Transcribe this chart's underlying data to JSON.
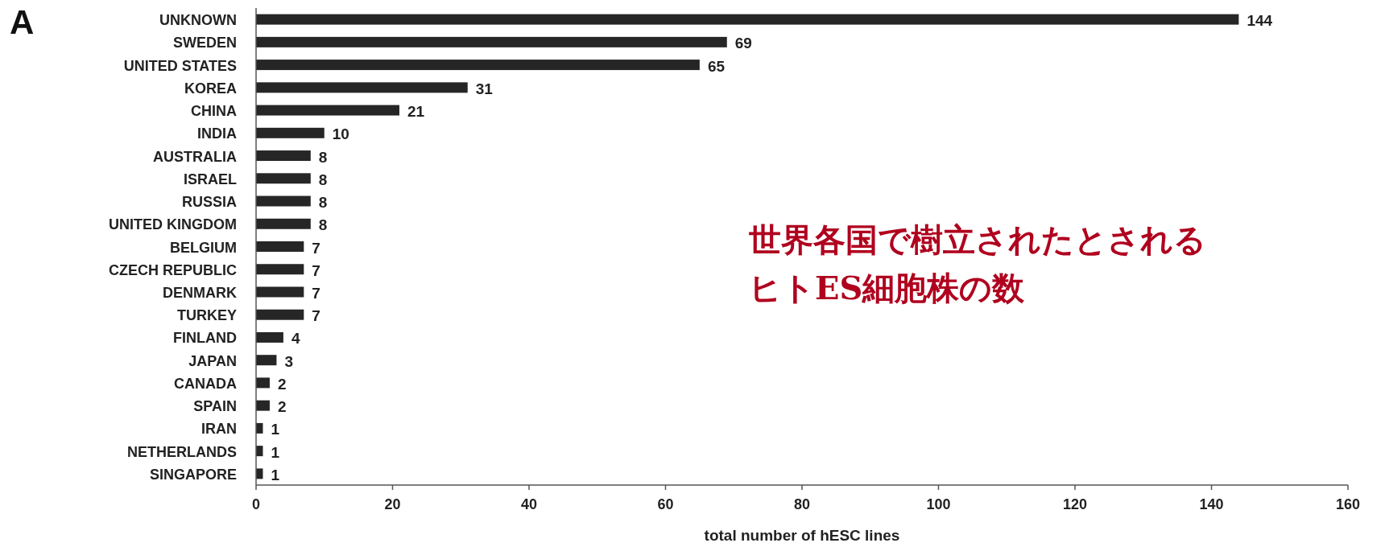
{
  "chart_data": {
    "type": "bar",
    "orientation": "horizontal",
    "xlabel": "total number of hESC lines",
    "categories": [
      "UNKNOWN",
      "SWEDEN",
      "UNITED STATES",
      "KOREA",
      "CHINA",
      "INDIA",
      "AUSTRALIA",
      "ISRAEL",
      "RUSSIA",
      "UNITED KINGDOM",
      "BELGIUM",
      "CZECH REPUBLIC",
      "DENMARK",
      "TURKEY",
      "FINLAND",
      "JAPAN",
      "CANADA",
      "SPAIN",
      "IRAN",
      "NETHERLANDS",
      "SINGAPORE"
    ],
    "values": [
      144,
      69,
      65,
      31,
      21,
      10,
      8,
      8,
      8,
      8,
      7,
      7,
      7,
      7,
      4,
      3,
      2,
      2,
      1,
      1,
      1
    ],
    "color": "#262626",
    "xlim": [
      0,
      160
    ],
    "xticks": [
      0,
      20,
      40,
      60,
      80,
      100,
      120,
      140,
      160
    ],
    "data_labels": true,
    "annotations": [
      "A",
      "世界各国で樹立されたとされるヒトES細胞株の数"
    ]
  }
}
